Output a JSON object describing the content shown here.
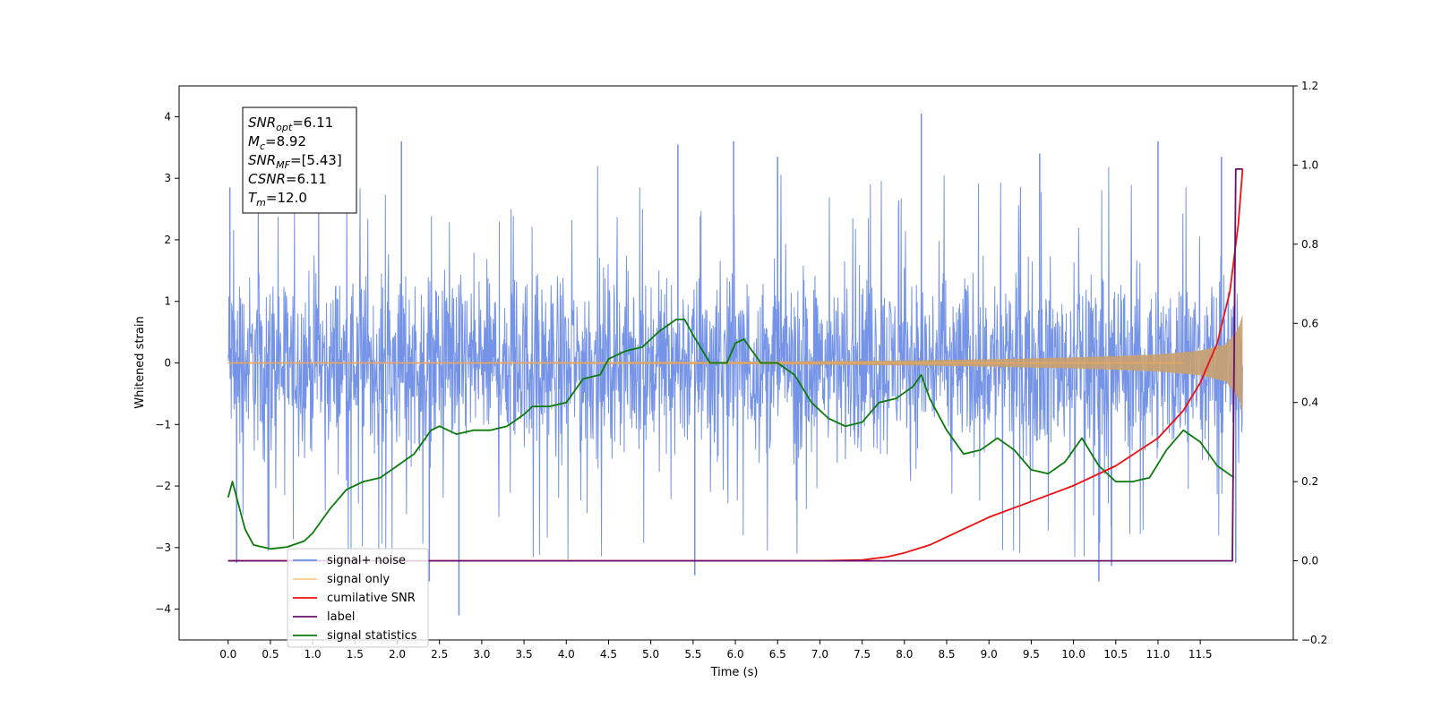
{
  "chart_data": {
    "type": "line",
    "xlabel": "Time (s)",
    "ylabel": "Whitened strain",
    "xlim": [
      -0.58,
      12.6
    ],
    "ylim": [
      -4.5,
      4.5
    ],
    "y2lim": [
      -0.2,
      1.2
    ],
    "x_ticks": [
      0.0,
      0.5,
      1.0,
      1.5,
      2.0,
      2.5,
      3.0,
      3.5,
      4.0,
      4.5,
      5.0,
      5.5,
      6.0,
      6.5,
      7.0,
      7.5,
      8.0,
      8.5,
      9.0,
      9.5,
      10.0,
      10.5,
      11.0,
      11.5
    ],
    "x_tick_labels": [
      "0.0",
      "0.5",
      "1.0",
      "1.5",
      "2.0",
      "2.5",
      "3.0",
      "3.5",
      "4.0",
      "4.5",
      "5.0",
      "5.5",
      "6.0",
      "6.5",
      "7.0",
      "7.5",
      "8.0",
      "8.5",
      "9.0",
      "9.5",
      "10.0",
      "10.5",
      "11.0",
      "11.5"
    ],
    "y_ticks": [
      -4,
      -3,
      -2,
      -1,
      0,
      1,
      2,
      3,
      4
    ],
    "y_tick_labels": [
      "−4",
      "−3",
      "−2",
      "−1",
      "0",
      "1",
      "2",
      "3",
      "4"
    ],
    "y2_ticks": [
      -0.2,
      0.0,
      0.2,
      0.4,
      0.6,
      0.8,
      1.0,
      1.2
    ],
    "y2_tick_labels": [
      "−0.2",
      "0.0",
      "0.2",
      "0.4",
      "0.6",
      "0.8",
      "1.0",
      "1.2"
    ],
    "grid": false,
    "legend_position": "bottom-left",
    "annotation": [
      {
        "base": "SNR",
        "sub": "opt",
        "value": "=6.11"
      },
      {
        "base": "M",
        "sub": "c",
        "value": "=8.92"
      },
      {
        "base": "SNR",
        "sub": "MF",
        "value": "=[5.43]"
      },
      {
        "base": "CSNR",
        "sub": "",
        "value": "=6.11"
      },
      {
        "base": "T",
        "sub": "m",
        "value": "=12.0"
      }
    ],
    "series": [
      {
        "name": "signal+ noise",
        "axis": "left",
        "color": "#6f8ee6",
        "kind": "noise_band",
        "x_range": [
          0.0,
          12.0
        ],
        "typical_min": -2.0,
        "typical_max": 2.0,
        "spikes": [
          {
            "x": 0.02,
            "y": 2.85
          },
          {
            "x": 0.1,
            "y": -3.25
          },
          {
            "x": 0.48,
            "y": -3.0
          },
          {
            "x": 2.05,
            "y": 3.6
          },
          {
            "x": 2.38,
            "y": -3.55
          },
          {
            "x": 2.73,
            "y": -4.1
          },
          {
            "x": 5.32,
            "y": 3.55
          },
          {
            "x": 5.52,
            "y": -3.45
          },
          {
            "x": 5.98,
            "y": 3.6
          },
          {
            "x": 6.5,
            "y": 3.35
          },
          {
            "x": 8.2,
            "y": 4.05
          },
          {
            "x": 9.6,
            "y": 3.4
          },
          {
            "x": 10.3,
            "y": -3.55
          },
          {
            "x": 10.45,
            "y": -3.3
          },
          {
            "x": 11.0,
            "y": 3.6
          },
          {
            "x": 11.75,
            "y": 3.35
          },
          {
            "x": 11.92,
            "y": -3.25
          }
        ]
      },
      {
        "name": "signal only",
        "axis": "left",
        "color": "#c8a070",
        "kind": "chirp_envelope",
        "x": [
          0.0,
          2.0,
          4.0,
          6.0,
          7.0,
          8.0,
          9.0,
          10.0,
          10.5,
          11.0,
          11.5,
          11.8,
          11.95,
          12.0
        ],
        "amplitude": [
          0.01,
          0.01,
          0.015,
          0.02,
          0.03,
          0.04,
          0.06,
          0.09,
          0.11,
          0.14,
          0.2,
          0.3,
          0.55,
          0.8
        ]
      },
      {
        "name": "cumilative SNR",
        "axis": "right",
        "color": "#ee1111",
        "x": [
          0.0,
          7.0,
          7.5,
          7.8,
          8.0,
          8.3,
          8.6,
          9.0,
          9.5,
          10.0,
          10.5,
          11.0,
          11.3,
          11.5,
          11.7,
          11.85,
          11.95,
          12.0
        ],
        "y": [
          0.0,
          0.0,
          0.002,
          0.01,
          0.02,
          0.04,
          0.07,
          0.11,
          0.15,
          0.19,
          0.24,
          0.31,
          0.38,
          0.45,
          0.55,
          0.68,
          0.85,
          0.99
        ]
      },
      {
        "name": "label",
        "axis": "right",
        "color": "#6a0f6e",
        "x": [
          0.0,
          11.88,
          11.92,
          12.0
        ],
        "y": [
          0.0,
          0.0,
          0.99,
          0.99
        ]
      },
      {
        "name": "signal statistics",
        "axis": "right",
        "color": "#0b7a0b",
        "x": [
          0.0,
          0.05,
          0.1,
          0.2,
          0.3,
          0.5,
          0.7,
          0.9,
          1.0,
          1.2,
          1.4,
          1.6,
          1.8,
          2.0,
          2.2,
          2.4,
          2.5,
          2.7,
          2.9,
          3.1,
          3.3,
          3.5,
          3.6,
          3.8,
          4.0,
          4.2,
          4.4,
          4.5,
          4.7,
          4.9,
          5.1,
          5.3,
          5.4,
          5.5,
          5.7,
          5.9,
          6.0,
          6.1,
          6.3,
          6.5,
          6.7,
          6.9,
          7.1,
          7.3,
          7.5,
          7.7,
          7.9,
          8.1,
          8.2,
          8.3,
          8.5,
          8.7,
          8.9,
          9.1,
          9.3,
          9.5,
          9.7,
          9.9,
          10.1,
          10.3,
          10.5,
          10.7,
          10.9,
          11.1,
          11.3,
          11.5,
          11.7,
          11.9
        ],
        "y": [
          0.16,
          0.2,
          0.16,
          0.08,
          0.04,
          0.03,
          0.035,
          0.05,
          0.07,
          0.13,
          0.18,
          0.2,
          0.21,
          0.24,
          0.27,
          0.33,
          0.34,
          0.32,
          0.33,
          0.33,
          0.34,
          0.37,
          0.39,
          0.39,
          0.4,
          0.46,
          0.47,
          0.51,
          0.53,
          0.54,
          0.58,
          0.61,
          0.61,
          0.57,
          0.5,
          0.5,
          0.55,
          0.56,
          0.5,
          0.5,
          0.47,
          0.4,
          0.36,
          0.34,
          0.35,
          0.4,
          0.41,
          0.44,
          0.47,
          0.41,
          0.33,
          0.27,
          0.28,
          0.31,
          0.28,
          0.23,
          0.22,
          0.25,
          0.31,
          0.24,
          0.2,
          0.2,
          0.21,
          0.28,
          0.33,
          0.3,
          0.24,
          0.21
        ]
      }
    ]
  }
}
